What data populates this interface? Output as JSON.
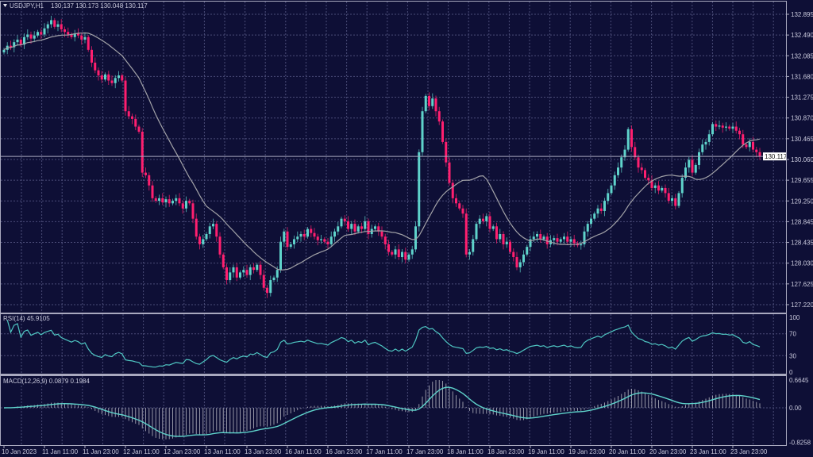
{
  "header": {
    "symbol": "USDJPY,H1",
    "ohlc": "130.137 130.173 130.048 130.117",
    "menu_icon": "triangle-down-icon"
  },
  "colors": {
    "background": "#0e0f36",
    "bull": "#5fd3cb",
    "bear": "#ff1f6f",
    "ma": "#a3a3a8",
    "rsi": "#4fc7c3",
    "macd_signal": "#5fd3cb",
    "macd_hist": "#b9b9c4",
    "grid": "#4b4c78"
  },
  "chart_data": [
    {
      "type": "candlestick",
      "title": "USDJPY,H1",
      "timeframe": "H1",
      "current_price": "130.117",
      "ylim": [
        127.22,
        132.895
      ],
      "yticks": [
        "132.895",
        "132.490",
        "132.085",
        "131.680",
        "131.275",
        "130.870",
        "130.465",
        "130.060",
        "129.655",
        "129.250",
        "128.845",
        "128.435",
        "128.030",
        "127.625",
        "127.220"
      ],
      "xticks": [
        "10 Jan 2023",
        "11 Jan 11:00",
        "11 Jan 23:00",
        "12 Jan 11:00",
        "12 Jan 23:00",
        "13 Jan 11:00",
        "13 Jan 23:00",
        "16 Jan 11:00",
        "16 Jan 23:00",
        "17 Jan 11:00",
        "17 Jan 23:00",
        "18 Jan 11:00",
        "18 Jan 23:00",
        "19 Jan 11:00",
        "19 Jan 23:00",
        "20 Jan 11:00",
        "20 Jan 23:00",
        "23 Jan 11:00",
        "23 Jan 23:00"
      ],
      "candles_per_xtick": 12,
      "grid": true,
      "overlay": "moving average",
      "ma_period": 20,
      "close": [
        132.2,
        132.28,
        132.25,
        132.35,
        132.4,
        132.3,
        132.45,
        132.5,
        132.42,
        132.48,
        132.55,
        132.5,
        132.62,
        132.7,
        132.78,
        132.65,
        132.7,
        132.6,
        132.55,
        132.5,
        132.45,
        132.52,
        132.48,
        132.4,
        132.45,
        132.2,
        131.95,
        131.8,
        131.7,
        131.62,
        131.72,
        131.6,
        131.55,
        131.65,
        131.7,
        131.6,
        131.0,
        130.9,
        130.85,
        130.7,
        130.6,
        129.8,
        129.75,
        129.55,
        129.3,
        129.25,
        129.3,
        129.22,
        129.28,
        129.2,
        129.25,
        129.3,
        129.2,
        129.1,
        129.25,
        129.2,
        128.9,
        128.55,
        128.4,
        128.5,
        128.6,
        128.75,
        128.8,
        128.55,
        128.2,
        127.95,
        127.7,
        127.85,
        127.95,
        127.75,
        127.85,
        127.9,
        127.8,
        127.95,
        127.9,
        128.0,
        127.8,
        127.55,
        127.45,
        127.7,
        127.75,
        127.9,
        128.45,
        128.65,
        128.35,
        128.4,
        128.5,
        128.55,
        128.6,
        128.55,
        128.7,
        128.62,
        128.55,
        128.48,
        128.5,
        128.45,
        128.4,
        128.55,
        128.65,
        128.75,
        128.9,
        128.85,
        128.7,
        128.8,
        128.65,
        128.75,
        128.7,
        128.85,
        128.6,
        128.7,
        128.75,
        128.65,
        128.55,
        128.4,
        128.25,
        128.2,
        128.3,
        128.15,
        128.25,
        128.1,
        128.2,
        128.3,
        128.75,
        130.2,
        131.0,
        131.3,
        131.1,
        131.25,
        131.0,
        130.8,
        130.4,
        130.0,
        129.6,
        129.3,
        129.2,
        129.1,
        129.0,
        128.2,
        128.25,
        128.5,
        128.8,
        128.9,
        128.85,
        128.95,
        128.7,
        128.75,
        128.5,
        128.6,
        128.4,
        128.45,
        128.25,
        128.15,
        127.95,
        128.05,
        128.2,
        128.35,
        128.5,
        128.55,
        128.6,
        128.5,
        128.55,
        128.4,
        128.48,
        128.52,
        128.45,
        128.5,
        128.55,
        128.45,
        128.5,
        128.42,
        128.38,
        128.4,
        128.65,
        128.8,
        128.9,
        129.0,
        129.1,
        129.05,
        129.25,
        129.4,
        129.55,
        129.75,
        129.9,
        130.1,
        130.25,
        130.65,
        130.3,
        130.1,
        129.9,
        129.85,
        129.7,
        129.65,
        129.5,
        129.55,
        129.45,
        129.5,
        129.4,
        129.25,
        129.3,
        129.15,
        129.4,
        129.7,
        129.9,
        130.05,
        129.8,
        129.95,
        130.2,
        130.35,
        130.4,
        130.55,
        130.75,
        130.7,
        130.72,
        130.68,
        130.7,
        130.66,
        130.7,
        130.62,
        130.55,
        130.35,
        130.3,
        130.4,
        130.25,
        130.2,
        130.117
      ]
    },
    {
      "type": "line",
      "title": "RSI(14) 45.9105",
      "period": 14,
      "last_value": 45.9105,
      "ylim": [
        0,
        100
      ],
      "yticks": [
        "100",
        "70",
        "30",
        "0"
      ],
      "levels": [
        70,
        30
      ]
    },
    {
      "type": "bar",
      "title": "MACD(12,26,9) 0.0879 0.1984",
      "params": [
        12,
        26,
        9
      ],
      "last_macd": 0.0879,
      "last_signal": 0.1984,
      "ylim": [
        -0.8258,
        0.6645
      ],
      "yticks": [
        "0.6645",
        "0.00",
        "-0.8258"
      ]
    }
  ]
}
